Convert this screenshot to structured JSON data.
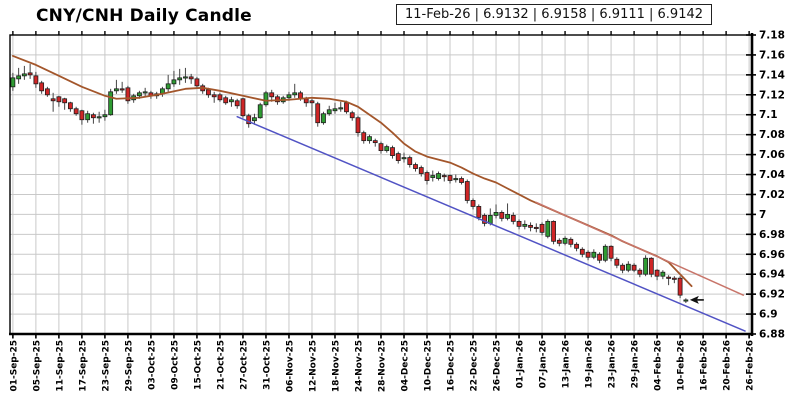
{
  "title": "CNY/CNH Daily Candle",
  "info_box": {
    "date": "11-Feb-26",
    "open": "6.9132",
    "high": "6.9158",
    "low": "6.9111",
    "close": "6.9142",
    "text": "11-Feb-26 | 6.9132 | 6.9158 | 6.9111 | 6.9142"
  },
  "chart_data": {
    "type": "candlestick",
    "title": "CNY/CNH Daily Candle",
    "grid": true,
    "y_axis": {
      "side": "right",
      "min": 6.88,
      "max": 7.18,
      "tick_step": 0.02,
      "ticks": [
        [
          "7.18",
          7.18
        ],
        [
          "7.16",
          7.16
        ],
        [
          "7.14",
          7.14
        ],
        [
          "7.12",
          7.12
        ],
        [
          "7.1",
          7.1
        ],
        [
          "7.08",
          7.08
        ],
        [
          "7.06",
          7.06
        ],
        [
          "7.04",
          7.04
        ],
        [
          "7.02",
          7.02
        ],
        [
          "7",
          7.0
        ],
        [
          "6.98",
          6.98
        ],
        [
          "6.96",
          6.96
        ],
        [
          "6.94",
          6.94
        ],
        [
          "6.92",
          6.92
        ],
        [
          "6.9",
          6.9
        ],
        [
          "6.88",
          6.88
        ]
      ]
    },
    "x_axis": {
      "labels": [
        "01-Sep-25",
        "05-Sep-25",
        "11-Sep-25",
        "17-Sep-25",
        "23-Sep-25",
        "29-Sep-25",
        "03-Oct-25",
        "09-Oct-25",
        "15-Oct-25",
        "21-Oct-25",
        "27-Oct-25",
        "31-Oct-25",
        "06-Nov-25",
        "12-Nov-25",
        "18-Nov-25",
        "24-Nov-25",
        "28-Nov-25",
        "04-Dec-25",
        "10-Dec-25",
        "16-Dec-25",
        "22-Dec-25",
        "26-Dec-25",
        "01-Jan-26",
        "07-Jan-26",
        "13-Jan-26",
        "19-Jan-26",
        "23-Jan-26",
        "29-Jan-26",
        "04-Feb-26",
        "10-Feb-26",
        "16-Feb-26",
        "20-Feb-26",
        "26-Feb-26"
      ],
      "label_slot_interval": 4,
      "total_slots": 129
    },
    "candles": [
      [
        "01-Sep-25",
        7.128,
        7.142,
        7.124,
        7.137
      ],
      [
        "02-Sep-25",
        7.136,
        7.147,
        7.131,
        7.139
      ],
      [
        "03-Sep-25",
        7.139,
        7.149,
        7.135,
        7.141
      ],
      [
        "04-Sep-25",
        7.142,
        7.151,
        7.136,
        7.14
      ],
      [
        "05-Sep-25",
        7.139,
        7.143,
        7.127,
        7.131
      ],
      [
        "08-Sep-25",
        7.132,
        7.134,
        7.121,
        7.124
      ],
      [
        "09-Sep-25",
        7.126,
        7.128,
        7.118,
        7.12
      ],
      [
        "10-Sep-25",
        7.116,
        7.122,
        7.103,
        7.114
      ],
      [
        "11-Sep-25",
        7.118,
        7.119,
        7.108,
        7.113
      ],
      [
        "12-Sep-25",
        7.116,
        7.117,
        7.105,
        7.112
      ],
      [
        "15-Sep-25",
        7.112,
        7.113,
        7.103,
        7.106
      ],
      [
        "16-Sep-25",
        7.106,
        7.108,
        7.099,
        7.101
      ],
      [
        "17-Sep-25",
        7.104,
        7.105,
        7.09,
        7.095
      ],
      [
        "18-Sep-25",
        7.095,
        7.104,
        7.092,
        7.101
      ],
      [
        "19-Sep-25",
        7.1,
        7.102,
        7.091,
        7.097
      ],
      [
        "22-Sep-25",
        7.097,
        7.103,
        7.092,
        7.098
      ],
      [
        "23-Sep-25",
        7.098,
        7.105,
        7.094,
        7.1
      ],
      [
        "24-Sep-25",
        7.1,
        7.126,
        7.099,
        7.123
      ],
      [
        "25-Sep-25",
        7.124,
        7.135,
        7.121,
        7.126
      ],
      [
        "26-Sep-25",
        7.126,
        7.133,
        7.122,
        7.125
      ],
      [
        "29-Sep-25",
        7.127,
        7.129,
        7.111,
        7.114
      ],
      [
        "30-Sep-25",
        7.115,
        7.121,
        7.112,
        7.119
      ],
      [
        "01-Oct-25",
        7.119,
        7.124,
        7.116,
        7.122
      ],
      [
        "02-Oct-25",
        7.122,
        7.127,
        7.118,
        7.123
      ],
      [
        "03-Oct-25",
        7.122,
        7.124,
        7.116,
        7.119
      ],
      [
        "06-Oct-25",
        7.119,
        7.123,
        7.116,
        7.121
      ],
      [
        "07-Oct-25",
        7.121,
        7.128,
        7.118,
        7.126
      ],
      [
        "08-Oct-25",
        7.126,
        7.14,
        7.123,
        7.131
      ],
      [
        "09-Oct-25",
        7.131,
        7.144,
        7.128,
        7.135
      ],
      [
        "10-Oct-25",
        7.135,
        7.146,
        7.13,
        7.137
      ],
      [
        "13-Oct-25",
        7.137,
        7.147,
        7.132,
        7.138
      ],
      [
        "14-Oct-25",
        7.138,
        7.141,
        7.131,
        7.136
      ],
      [
        "15-Oct-25",
        7.136,
        7.138,
        7.126,
        7.129
      ],
      [
        "16-Oct-25",
        7.129,
        7.131,
        7.121,
        7.124
      ],
      [
        "17-Oct-25",
        7.125,
        7.127,
        7.117,
        7.12
      ],
      [
        "20-Oct-25",
        7.12,
        7.123,
        7.112,
        7.118
      ],
      [
        "21-Oct-25",
        7.12,
        7.122,
        7.113,
        7.115
      ],
      [
        "22-Oct-25",
        7.117,
        7.119,
        7.11,
        7.112
      ],
      [
        "23-Oct-25",
        7.113,
        7.118,
        7.108,
        7.115
      ],
      [
        "24-Oct-25",
        7.114,
        7.116,
        7.106,
        7.109
      ],
      [
        "27-Oct-25",
        7.116,
        7.117,
        7.097,
        7.099
      ],
      [
        "28-Oct-25",
        7.099,
        7.101,
        7.087,
        7.091
      ],
      [
        "29-Oct-25",
        7.094,
        7.101,
        7.09,
        7.097
      ],
      [
        "30-Oct-25",
        7.097,
        7.112,
        7.096,
        7.11
      ],
      [
        "31-Oct-25",
        7.11,
        7.124,
        7.108,
        7.122
      ],
      [
        "03-Nov-25",
        7.122,
        7.125,
        7.113,
        7.118
      ],
      [
        "04-Nov-25",
        7.118,
        7.12,
        7.11,
        7.113
      ],
      [
        "05-Nov-25",
        7.113,
        7.119,
        7.111,
        7.117
      ],
      [
        "06-Nov-25",
        7.117,
        7.123,
        7.114,
        7.12
      ],
      [
        "07-Nov-25",
        7.12,
        7.131,
        7.117,
        7.122
      ],
      [
        "10-Nov-25",
        7.122,
        7.124,
        7.114,
        7.116
      ],
      [
        "11-Nov-25",
        7.116,
        7.118,
        7.108,
        7.112
      ],
      [
        "12-Nov-25",
        7.114,
        7.116,
        7.098,
        7.112
      ],
      [
        "13-Nov-25",
        7.111,
        7.113,
        7.088,
        7.092
      ],
      [
        "14-Nov-25",
        7.092,
        7.103,
        7.09,
        7.101
      ],
      [
        "17-Nov-25",
        7.101,
        7.109,
        7.099,
        7.105
      ],
      [
        "18-Nov-25",
        7.104,
        7.112,
        7.101,
        7.106
      ],
      [
        "19-Nov-25",
        7.106,
        7.113,
        7.103,
        7.107
      ],
      [
        "20-Nov-25",
        7.112,
        7.114,
        7.101,
        7.103
      ],
      [
        "21-Nov-25",
        7.102,
        7.104,
        7.094,
        7.097
      ],
      [
        "24-Nov-25",
        7.097,
        7.099,
        7.078,
        7.082
      ],
      [
        "25-Nov-25",
        7.082,
        7.084,
        7.071,
        7.074
      ],
      [
        "26-Nov-25",
        7.074,
        7.08,
        7.071,
        7.078
      ],
      [
        "27-Nov-25",
        7.074,
        7.076,
        7.068,
        7.072
      ],
      [
        "28-Nov-25",
        7.071,
        7.073,
        7.061,
        7.064
      ],
      [
        "01-Dec-25",
        7.064,
        7.07,
        7.062,
        7.068
      ],
      [
        "02-Dec-25",
        7.067,
        7.069,
        7.056,
        7.059
      ],
      [
        "03-Dec-25",
        7.061,
        7.063,
        7.051,
        7.054
      ],
      [
        "04-Dec-25",
        7.056,
        7.062,
        7.052,
        7.057
      ],
      [
        "05-Dec-25",
        7.057,
        7.059,
        7.047,
        7.05
      ],
      [
        "08-Dec-25",
        7.05,
        7.052,
        7.043,
        7.046
      ],
      [
        "09-Dec-25",
        7.047,
        7.049,
        7.038,
        7.041
      ],
      [
        "10-Dec-25",
        7.042,
        7.044,
        7.03,
        7.034
      ],
      [
        "11-Dec-25",
        7.037,
        7.044,
        7.033,
        7.039
      ],
      [
        "12-Dec-25",
        7.036,
        7.043,
        7.034,
        7.041
      ],
      [
        "15-Dec-25",
        7.039,
        7.041,
        7.033,
        7.038
      ],
      [
        "16-Dec-25",
        7.039,
        7.04,
        7.031,
        7.034
      ],
      [
        "17-Dec-25",
        7.035,
        7.04,
        7.032,
        7.036
      ],
      [
        "18-Dec-25",
        7.036,
        7.038,
        7.03,
        7.032
      ],
      [
        "19-Dec-25",
        7.033,
        7.035,
        7.011,
        7.014
      ],
      [
        "22-Dec-25",
        7.014,
        7.016,
        7.005,
        7.008
      ],
      [
        "23-Dec-25",
        7.008,
        7.01,
        6.994,
        6.997
      ],
      [
        "24-Dec-25",
        6.999,
        7.001,
        6.988,
        6.991
      ],
      [
        "25-Dec-25",
        6.991,
        7.006,
        6.989,
        6.999
      ],
      [
        "26-Dec-25",
        6.999,
        7.01,
        6.996,
        7.002
      ],
      [
        "29-Dec-25",
        7.002,
        7.004,
        6.993,
        6.996
      ],
      [
        "30-Dec-25",
        6.996,
        7.011,
        6.994,
        7.0
      ],
      [
        "31-Dec-25",
        6.999,
        7.002,
        6.99,
        6.993
      ],
      [
        "01-Jan-26",
        6.993,
        6.995,
        6.985,
        6.988
      ],
      [
        "02-Jan-26",
        6.988,
        6.994,
        6.985,
        6.99
      ],
      [
        "05-Jan-26",
        6.989,
        6.992,
        6.983,
        6.987
      ],
      [
        "06-Jan-26",
        6.987,
        6.991,
        6.982,
        6.986
      ],
      [
        "07-Jan-26",
        6.99,
        6.992,
        6.979,
        6.982
      ],
      [
        "08-Jan-26",
        6.978,
        6.995,
        6.976,
        6.993
      ],
      [
        "09-Jan-26",
        6.993,
        6.994,
        6.97,
        6.973
      ],
      [
        "12-Jan-26",
        6.974,
        6.976,
        6.968,
        6.971
      ],
      [
        "13-Jan-26",
        6.971,
        6.978,
        6.969,
        6.976
      ],
      [
        "14-Jan-26",
        6.975,
        6.977,
        6.967,
        6.97
      ],
      [
        "15-Jan-26",
        6.97,
        6.972,
        6.963,
        6.966
      ],
      [
        "16-Jan-26",
        6.965,
        6.967,
        6.957,
        6.96
      ],
      [
        "19-Jan-26",
        6.962,
        6.964,
        6.954,
        6.957
      ],
      [
        "20-Jan-26",
        6.957,
        6.965,
        6.955,
        6.962
      ],
      [
        "21-Jan-26",
        6.96,
        6.962,
        6.951,
        6.954
      ],
      [
        "22-Jan-26",
        6.954,
        6.97,
        6.952,
        6.968
      ],
      [
        "23-Jan-26",
        6.968,
        6.969,
        6.953,
        6.956
      ],
      [
        "26-Jan-26",
        6.955,
        6.957,
        6.946,
        6.949
      ],
      [
        "27-Jan-26",
        6.949,
        6.951,
        6.941,
        6.944
      ],
      [
        "28-Jan-26",
        6.944,
        6.953,
        6.942,
        6.95
      ],
      [
        "29-Jan-26",
        6.949,
        6.951,
        6.942,
        6.944
      ],
      [
        "30-Jan-26",
        6.944,
        6.946,
        6.937,
        6.94
      ],
      [
        "02-Feb-26",
        6.94,
        6.959,
        6.938,
        6.956
      ],
      [
        "03-Feb-26",
        6.956,
        6.957,
        6.937,
        6.94
      ],
      [
        "04-Feb-26",
        6.944,
        6.945,
        6.934,
        6.938
      ],
      [
        "05-Feb-26",
        6.938,
        6.944,
        6.935,
        6.942
      ],
      [
        "06-Feb-26",
        6.937,
        6.939,
        6.929,
        6.936
      ],
      [
        "09-Feb-26",
        6.936,
        6.938,
        6.931,
        6.935
      ],
      [
        "10-Feb-26",
        6.936,
        6.938,
        6.916,
        6.919
      ],
      [
        "11-Feb-26",
        6.9132,
        6.9158,
        6.9111,
        6.9142
      ]
    ],
    "overlays": {
      "ma_line": {
        "name": "moving-average",
        "points": [
          [
            0,
            7.159
          ],
          [
            4,
            7.15
          ],
          [
            8,
            7.139
          ],
          [
            12,
            7.128
          ],
          [
            16,
            7.119
          ],
          [
            18,
            7.116
          ],
          [
            22,
            7.117
          ],
          [
            26,
            7.121
          ],
          [
            30,
            7.126
          ],
          [
            33,
            7.127
          ],
          [
            36,
            7.124
          ],
          [
            40,
            7.119
          ],
          [
            44,
            7.114
          ],
          [
            48,
            7.115
          ],
          [
            52,
            7.117
          ],
          [
            55,
            7.116
          ],
          [
            58,
            7.113
          ],
          [
            60,
            7.108
          ],
          [
            62,
            7.1
          ],
          [
            64,
            7.092
          ],
          [
            66,
            7.082
          ],
          [
            68,
            7.071
          ],
          [
            70,
            7.063
          ],
          [
            72,
            7.058
          ],
          [
            74,
            7.055
          ],
          [
            76,
            7.052
          ],
          [
            78,
            7.047
          ],
          [
            80,
            7.041
          ],
          [
            82,
            7.036
          ],
          [
            84,
            7.032
          ],
          [
            86,
            7.026
          ],
          [
            88,
            7.02
          ],
          [
            90,
            7.014
          ],
          [
            92,
            7.009
          ],
          [
            94,
            7.004
          ],
          [
            96,
            6.999
          ],
          [
            98,
            6.994
          ],
          [
            100,
            6.989
          ],
          [
            102,
            6.984
          ],
          [
            104,
            6.979
          ],
          [
            106,
            6.973
          ],
          [
            108,
            6.968
          ],
          [
            110,
            6.963
          ],
          [
            112,
            6.958
          ],
          [
            114,
            6.952
          ],
          [
            116,
            6.94
          ],
          [
            118,
            6.928
          ]
        ]
      },
      "upper_channel": {
        "name": "upper-channel-line",
        "points": [
          [
            91,
            7.012
          ],
          [
            127,
            6.919
          ]
        ]
      },
      "lower_trendline": {
        "name": "lower-trendline",
        "points": [
          [
            39,
            7.098
          ],
          [
            127.3,
            6.883
          ]
        ]
      }
    },
    "marker": {
      "type": "arrow-left",
      "slot": 117,
      "value": 6.9142
    },
    "colors": {
      "up_candle": "#2e9b32",
      "down_candle": "#cf2526",
      "candle_border": "#1f1f1f",
      "wick": "#444444",
      "ma_line": "#a3562b",
      "channel_line": "#c8756a",
      "trendline": "#5153c4",
      "grid": "#c9c9c9",
      "axis": "#000000",
      "marker": "#111111"
    }
  }
}
